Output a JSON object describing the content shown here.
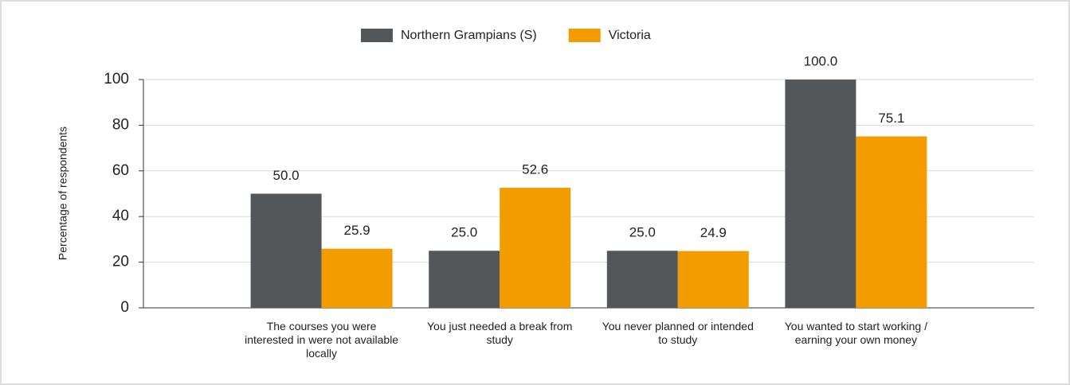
{
  "chart_data": {
    "type": "bar",
    "categories": [
      "The courses you were interested in were not available locally",
      "You just needed a break from study",
      "You never planned or intended to study",
      "You wanted to start working / earning your own money"
    ],
    "series": [
      {
        "name": "Northern Grampians (S)",
        "color": "#54575a",
        "values": [
          50,
          25,
          25,
          100
        ],
        "value_labels": [
          "50.0",
          "25.0",
          "25.0",
          "100.0"
        ]
      },
      {
        "name": "Victoria",
        "color": "#f39c00",
        "values": [
          25.9,
          52.6,
          24.9,
          75.1
        ],
        "value_labels": [
          "25.9",
          "52.6",
          "24.9",
          "75.1"
        ]
      }
    ],
    "y_label": "Percentage of respondents",
    "ylim": [
      0,
      100
    ],
    "yticks": [
      0,
      20,
      40,
      60,
      80,
      100
    ],
    "grid": true,
    "legend": "top"
  }
}
